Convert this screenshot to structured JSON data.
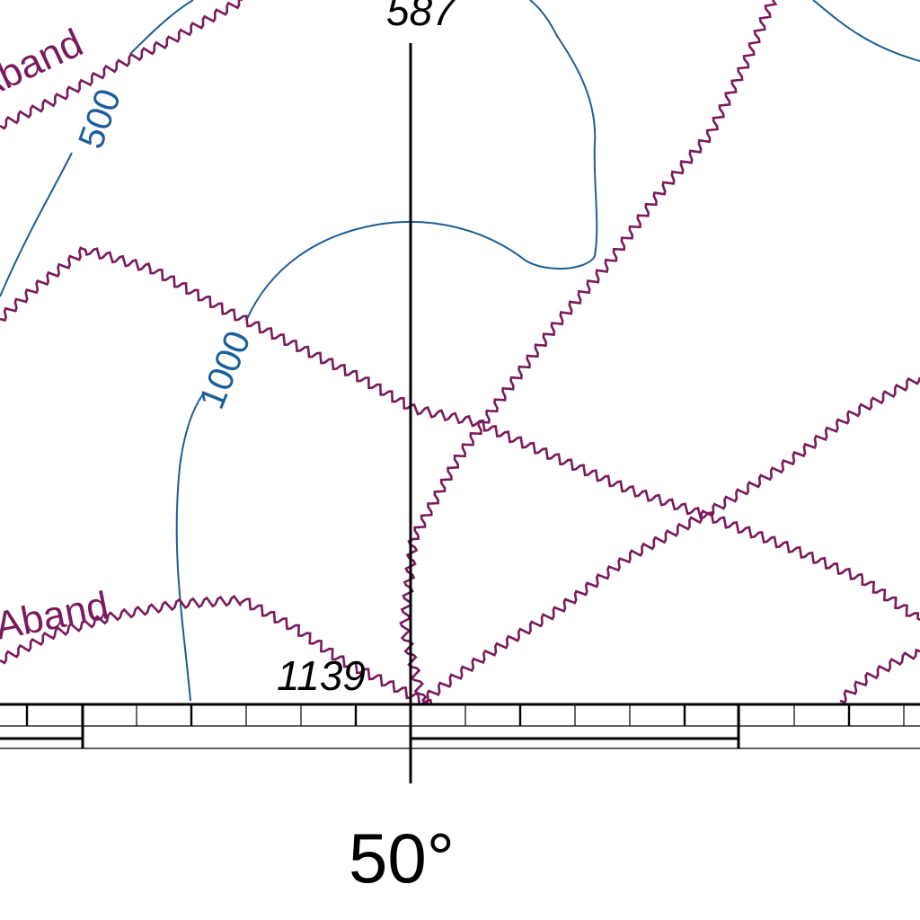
{
  "colors": {
    "contour": "#1a5e9a",
    "boundary_line": "#7a1a5c",
    "frame": "#000000",
    "background": "#ffffff"
  },
  "labels": {
    "elevation_top": "587",
    "elevation_bottom": "1139",
    "contour_500": "500",
    "contour_1000": "1000",
    "line_top": "Aband",
    "line_bottom": "Aband",
    "longitude": "50°"
  }
}
